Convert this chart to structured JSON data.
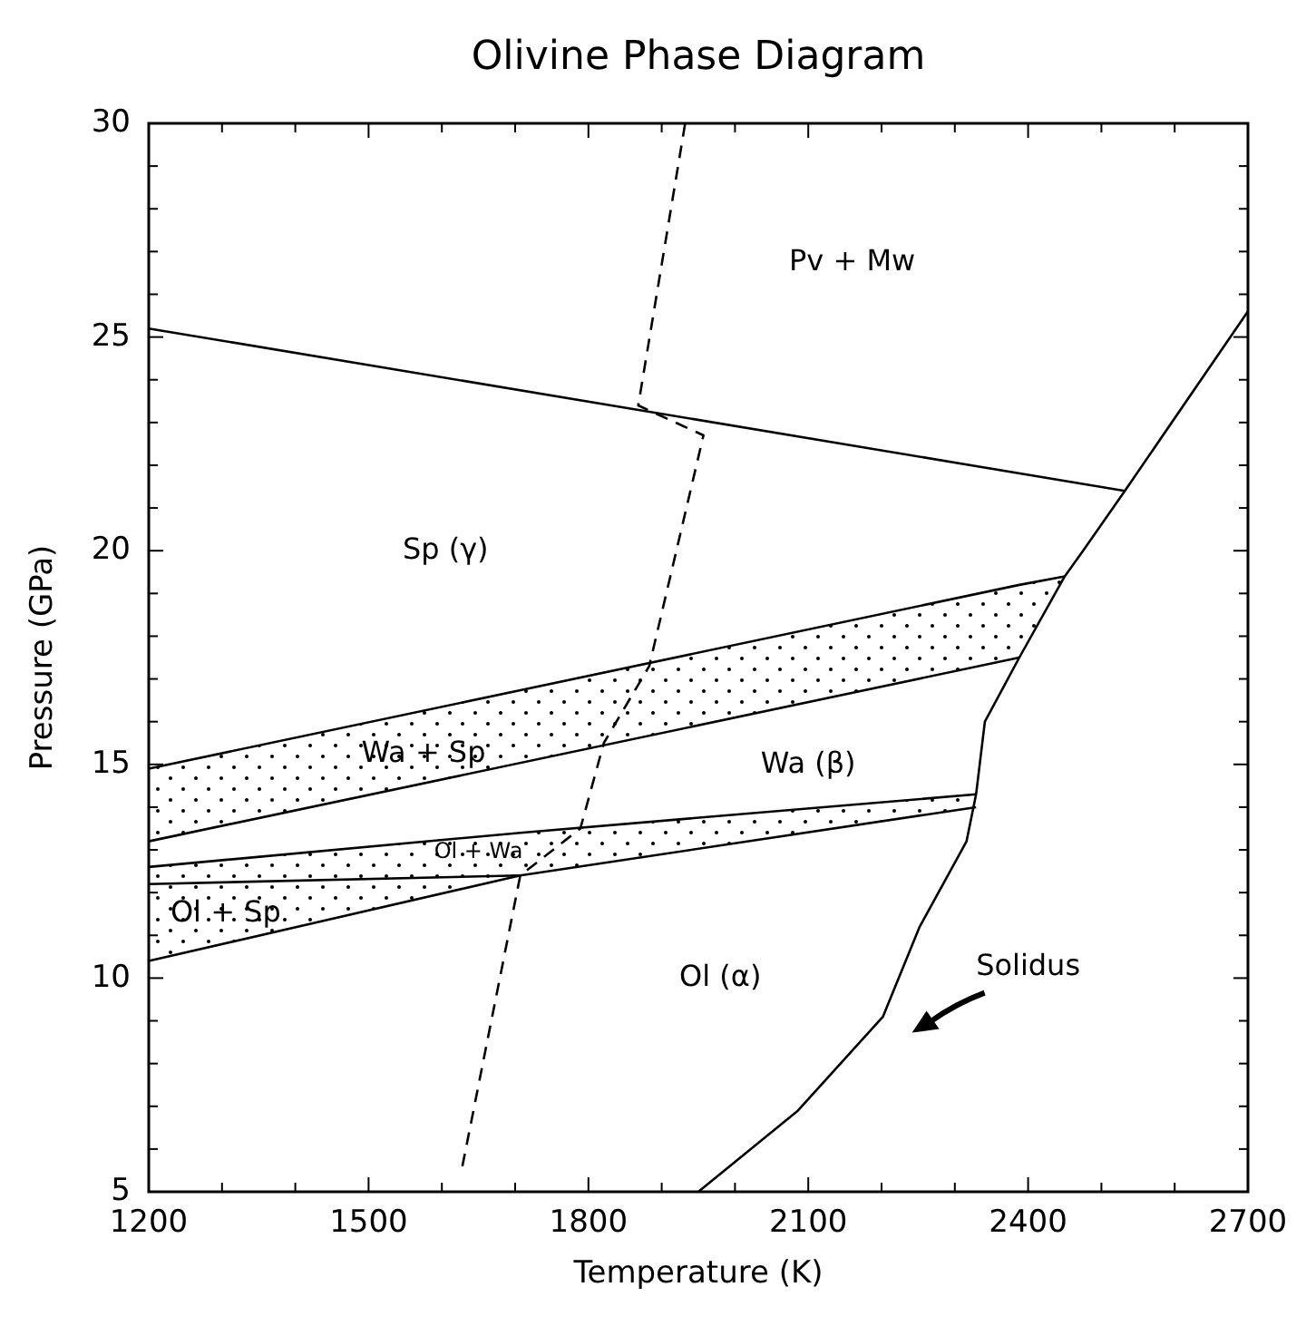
{
  "chart_data": {
    "type": "line",
    "title": "Olivine Phase Diagram",
    "xlabel": "Temperature (K)",
    "ylabel": "Pressure (GPa)",
    "xlim": [
      1200,
      2700
    ],
    "ylim": [
      5,
      30
    ],
    "xticks": [
      1200,
      {
        "value": 1300,
        "label": null
      },
      {
        "value": 1400,
        "label": null
      },
      1500,
      {
        "value": 1600,
        "label": null
      },
      {
        "value": 1700,
        "label": null
      },
      1800,
      {
        "value": 1900,
        "label": null
      },
      {
        "value": 2000,
        "label": null
      },
      2100,
      {
        "value": 2200,
        "label": null
      },
      {
        "value": 2300,
        "label": null
      },
      2400,
      {
        "value": 2500,
        "label": null
      },
      {
        "value": 2600,
        "label": null
      },
      2700
    ],
    "yticks": [
      5,
      {
        "value": 6,
        "label": null
      },
      {
        "value": 7,
        "label": null
      },
      {
        "value": 8,
        "label": null
      },
      {
        "value": 9,
        "label": null
      },
      10,
      {
        "value": 11,
        "label": null
      },
      {
        "value": 12,
        "label": null
      },
      {
        "value": 13,
        "label": null
      },
      {
        "value": 14,
        "label": null
      },
      15,
      {
        "value": 16,
        "label": null
      },
      {
        "value": 17,
        "label": null
      },
      {
        "value": 18,
        "label": null
      },
      {
        "value": 19,
        "label": null
      },
      20,
      {
        "value": 21,
        "label": null
      },
      {
        "value": 22,
        "label": null
      },
      {
        "value": 23,
        "label": null
      },
      {
        "value": 24,
        "label": null
      },
      25,
      {
        "value": 26,
        "label": null
      },
      {
        "value": 27,
        "label": null
      },
      {
        "value": 28,
        "label": null
      },
      {
        "value": 29,
        "label": null
      },
      30
    ],
    "grid": false,
    "marker": "none",
    "line_style": "solid",
    "series": [
      {
        "color": "#000000",
        "x": [
          1200,
          2532
        ],
        "values": [
          25.2,
          21.4
        ]
      },
      {
        "color": "#000000",
        "x": [
          1950,
          2086,
          2202,
          2252,
          2316,
          2329,
          2341,
          2388,
          2450,
          2475,
          2532,
          2700
        ],
        "values": [
          5,
          6.9,
          9.1,
          11.2,
          13.2,
          14.3,
          16.0,
          17.5,
          19.4,
          20.0,
          21.4,
          25.6
        ]
      },
      {
        "color": "#000000",
        "x": [
          1200,
          2388,
          2450
        ],
        "values": [
          14.9,
          19.2,
          19.4
        ],
        "lower": [
          13.2,
          17.5,
          19.4
        ],
        "upper": [
          14.9,
          19.2,
          19.4
        ]
      },
      {
        "color": "#000000",
        "x": [
          1200,
          1707,
          2329
        ],
        "values": [
          12.6,
          13.4,
          14.3
        ],
        "lower": [
          10.4,
          12.4,
          14.0
        ],
        "upper": [
          12.6,
          13.4,
          14.3
        ]
      },
      {
        "color": "#000000",
        "x": [
          1200,
          2388
        ],
        "values": [
          13.2,
          17.5
        ]
      },
      {
        "color": "#000000",
        "x": [
          1200,
          1707,
          2329
        ],
        "values": [
          10.4,
          12.4,
          14.0
        ]
      },
      {
        "color": "#000000",
        "x": [
          1200,
          1707
        ],
        "values": [
          12.2,
          12.4
        ]
      },
      {
        "color": "#000000",
        "line_style": "dashed",
        "x": [
          1628,
          1707,
          1789,
          1821,
          1883,
          1957,
          1868,
          1932
        ],
        "values": [
          5.6,
          12.4,
          13.5,
          15.5,
          17.3,
          22.7,
          23.4,
          30
        ]
      }
    ],
    "annotations": [
      "Pv + Mw",
      "Sp (γ)",
      "Wa + Sp",
      "Wa (β)",
      "Ol + Wa",
      "Ol + Sp",
      "Ol (α)",
      "Solidus"
    ]
  }
}
